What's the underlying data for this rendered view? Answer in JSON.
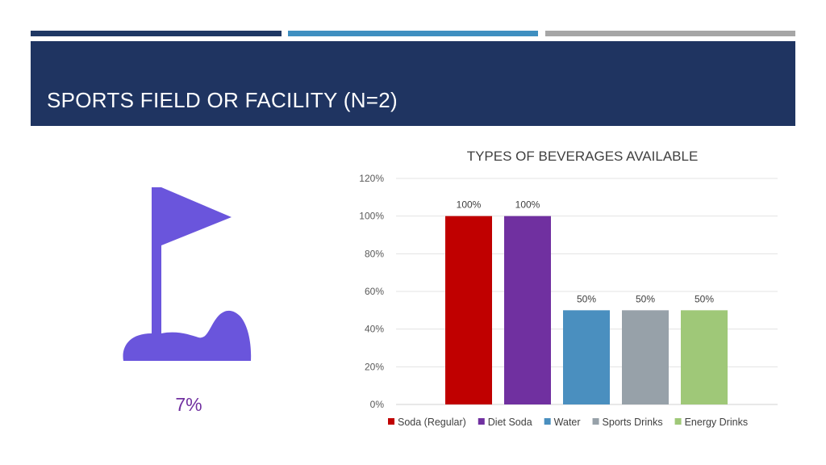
{
  "header": {
    "title": "SPORTS FIELD OR FACILITY (N=2)"
  },
  "stat": {
    "icon": "golf-flag-icon",
    "value": "7%"
  },
  "colors": {
    "header_bg": "#1f3461",
    "icon": "#6a55dc",
    "stat": "#7030a0"
  },
  "chart_data": {
    "type": "bar",
    "title": "TYPES OF BEVERAGES AVAILABLE",
    "ylim": [
      0,
      120
    ],
    "yticks": [
      "0%",
      "20%",
      "40%",
      "60%",
      "80%",
      "100%",
      "120%"
    ],
    "ytick_values": [
      0,
      20,
      40,
      60,
      80,
      100,
      120
    ],
    "legend_position": "bottom",
    "grid": true,
    "series": [
      {
        "name": "Soda (Regular)",
        "value": 100,
        "label": "100%",
        "color": "#c00000"
      },
      {
        "name": "Diet Soda",
        "value": 100,
        "label": "100%",
        "color": "#7030a0"
      },
      {
        "name": "Water",
        "value": 50,
        "label": "50%",
        "color": "#4a8fbf"
      },
      {
        "name": "Sports Drinks",
        "value": 50,
        "label": "50%",
        "color": "#97a1a9"
      },
      {
        "name": "Energy Drinks",
        "value": 50,
        "label": "50%",
        "color": "#9fc878"
      }
    ]
  }
}
